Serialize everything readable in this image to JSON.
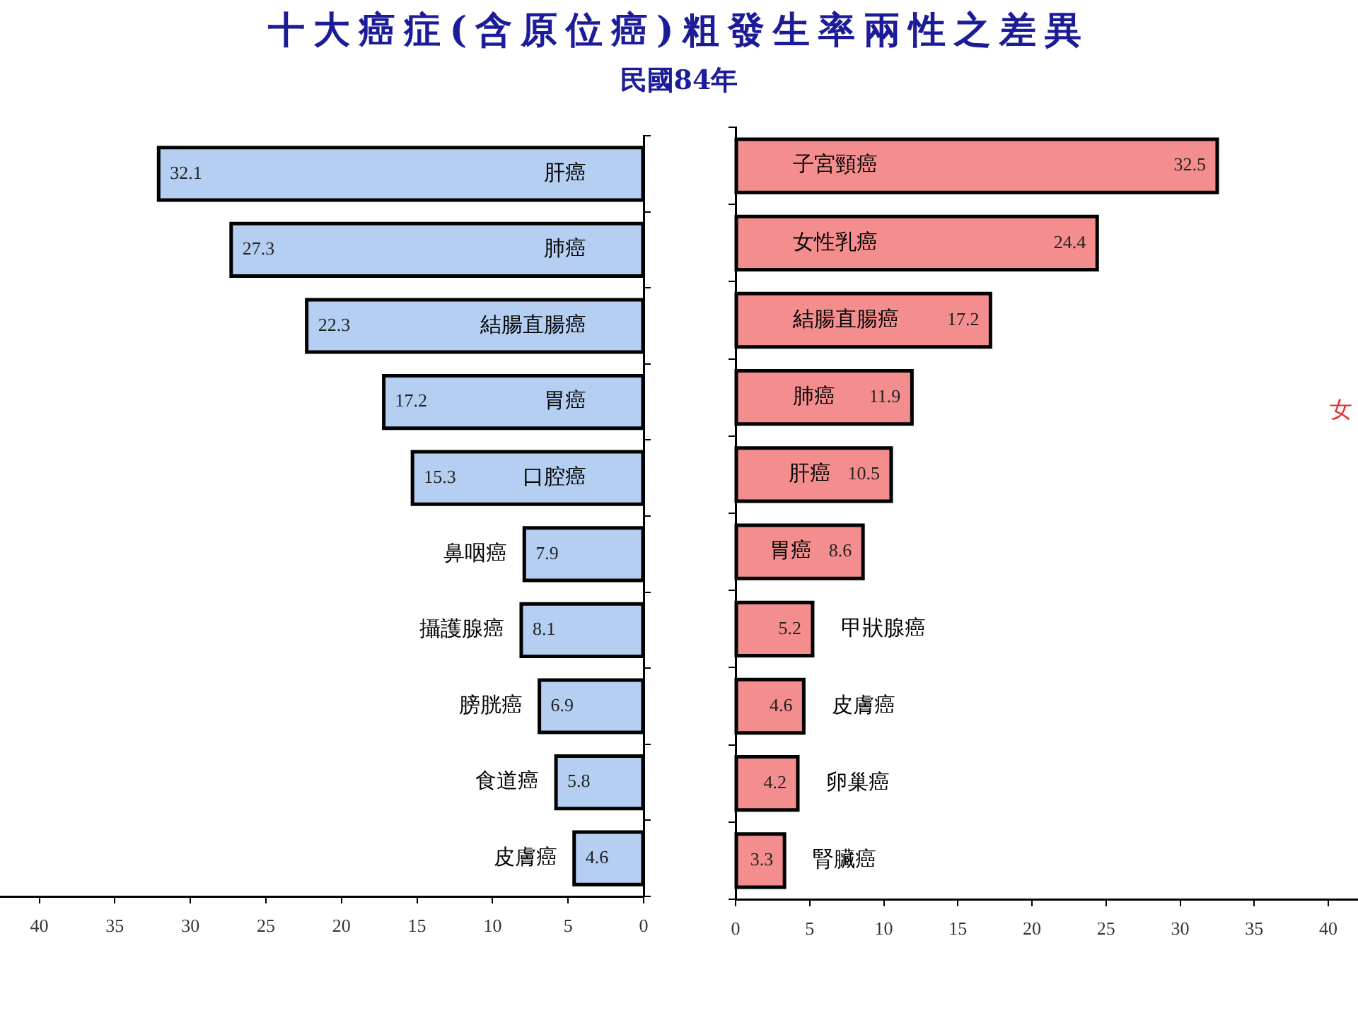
{
  "chart_data": [
    {
      "type": "bar",
      "orientation": "horizontal",
      "title": "十大癌症(含原位癌)粗發生率兩性之差異",
      "subtitle": "民國84年",
      "categories": [
        "肝癌",
        "肺癌",
        "結腸直腸癌",
        "胃癌",
        "口腔癌",
        "鼻咽癌",
        "攝護腺癌",
        "膀胱癌",
        "食道癌",
        "皮膚癌"
      ],
      "values": [
        32.1,
        27.3,
        22.3,
        17.2,
        15.3,
        7.9,
        8.1,
        6.9,
        5.8,
        4.6
      ],
      "color": "#b4cff1",
      "data_labels": true,
      "xlim": [
        42.6,
        0
      ],
      "xticks": [
        40,
        35,
        30,
        25,
        20,
        15,
        10,
        5,
        0
      ],
      "grid": false
    },
    {
      "type": "bar",
      "orientation": "horizontal",
      "categories": [
        "子宮頸癌",
        "女性乳癌",
        "結腸直腸癌",
        "肺癌",
        "肝癌",
        "胃癌",
        "甲狀腺癌",
        "皮膚癌",
        "卵巢癌",
        "腎臟癌"
      ],
      "values": [
        32.5,
        24.4,
        17.2,
        11.9,
        10.5,
        8.6,
        5.2,
        4.6,
        4.2,
        3.3
      ],
      "color": "#f48e8e",
      "data_labels": true,
      "xlim": [
        0,
        42
      ],
      "xticks": [
        0,
        5,
        10,
        15,
        20,
        25,
        30,
        35,
        40
      ],
      "grid": false,
      "annotations": [
        "女"
      ]
    }
  ]
}
